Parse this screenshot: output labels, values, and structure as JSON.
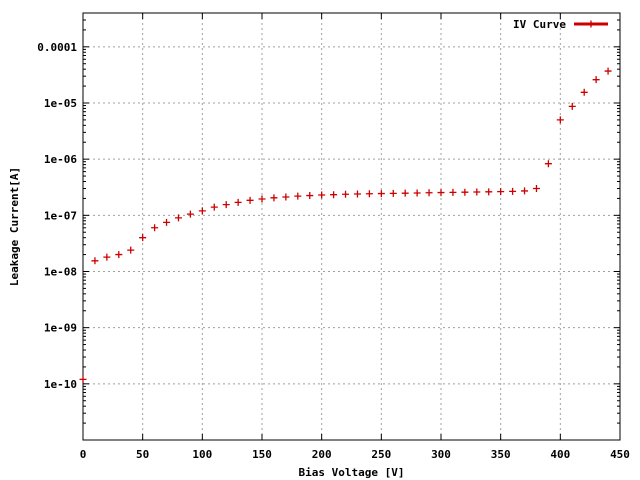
{
  "chart_data": {
    "type": "scatter",
    "title": "",
    "xlabel": "Bias Voltage [V]",
    "ylabel": "Leakage Current[A]",
    "xlim": [
      0,
      450
    ],
    "ylim": [
      1e-11,
      0.0004
    ],
    "y_scale": "log",
    "grid": true,
    "legend_position": "top-right",
    "x_ticks": [
      0,
      50,
      100,
      150,
      200,
      250,
      300,
      350,
      400,
      450
    ],
    "x_tick_labels": [
      "0",
      "50",
      "100",
      "150",
      "200",
      "250",
      "300",
      "350",
      "400",
      "450"
    ],
    "y_ticks": [
      1e-10,
      1e-09,
      1e-08,
      1e-07,
      1e-06,
      1e-05,
      0.0001
    ],
    "y_tick_labels": [
      "1e-10",
      "1e-09",
      "1e-08",
      "1e-07",
      "1e-06",
      "1e-05",
      "0.0001"
    ],
    "series": [
      {
        "name": "IV Curve",
        "color": "#cc0000",
        "marker": "plus",
        "x": [
          0,
          10,
          20,
          30,
          40,
          50,
          60,
          70,
          80,
          90,
          100,
          110,
          120,
          130,
          140,
          150,
          160,
          170,
          180,
          190,
          200,
          210,
          220,
          230,
          240,
          250,
          260,
          270,
          280,
          290,
          300,
          310,
          320,
          330,
          340,
          350,
          360,
          370,
          380,
          390,
          400,
          410,
          420,
          430,
          440
        ],
        "y": [
          1.2e-10,
          1.55e-08,
          1.8e-08,
          2e-08,
          2.4e-08,
          4e-08,
          6e-08,
          7.5e-08,
          9e-08,
          1.05e-07,
          1.2e-07,
          1.4e-07,
          1.55e-07,
          1.7e-07,
          1.85e-07,
          1.95e-07,
          2.05e-07,
          2.12e-07,
          2.2e-07,
          2.25e-07,
          2.3e-07,
          2.33e-07,
          2.37e-07,
          2.4e-07,
          2.42e-07,
          2.44e-07,
          2.46e-07,
          2.48e-07,
          2.5e-07,
          2.52e-07,
          2.54e-07,
          2.56e-07,
          2.58e-07,
          2.6e-07,
          2.62e-07,
          2.64e-07,
          2.67e-07,
          2.72e-07,
          3e-07,
          8.3e-07,
          5e-06,
          8.7e-06,
          1.55e-05,
          2.6e-05,
          3.7e-05
        ]
      }
    ]
  }
}
